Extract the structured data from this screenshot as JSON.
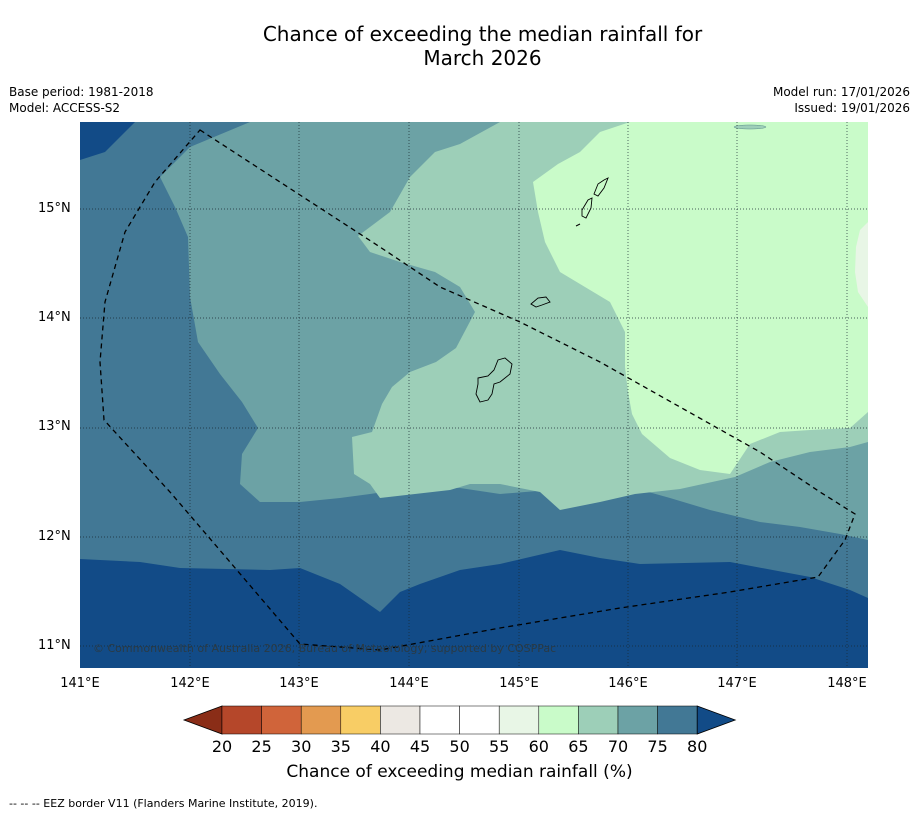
{
  "header": {
    "title_line1": "Chance of exceeding the median rainfall for",
    "title_line2": "March 2026",
    "base_period": "Base period: 1981-2018",
    "model": "Model: ACCESS-S2",
    "model_run": "Model run: 17/01/2026",
    "issued": "Issued: 19/01/2026"
  },
  "map": {
    "lat_ticks": [
      "15°N",
      "14°N",
      "13°N",
      "12°N",
      "11°N"
    ],
    "lon_ticks": [
      "141°E",
      "142°E",
      "143°E",
      "144°E",
      "145°E",
      "146°E",
      "147°E",
      "148°E"
    ],
    "copyright": "© Commonwealth of Australia 2026, Bureau of Meteorology, supported by COSPPac",
    "land_features": [
      "Guam",
      "Rota",
      "Tinian",
      "Saipan"
    ]
  },
  "colorbar": {
    "ticks": [
      "20",
      "25",
      "30",
      "35",
      "40",
      "45",
      "50",
      "55",
      "60",
      "65",
      "70",
      "75",
      "80"
    ],
    "colors": [
      "#8a2d17",
      "#b5472a",
      "#d0643a",
      "#e39a50",
      "#f8cd65",
      "#ece8e3",
      "#ffffff",
      "#ffffff",
      "#e8f6e6",
      "#c9fbc9",
      "#9dcfb8",
      "#6ca2a5",
      "#427895",
      "#124b87"
    ],
    "label": "Chance of exceeding median rainfall (%)"
  },
  "footnote": "--  --  -- EEZ border V11 (Flanders Marine Institute, 2019)."
}
